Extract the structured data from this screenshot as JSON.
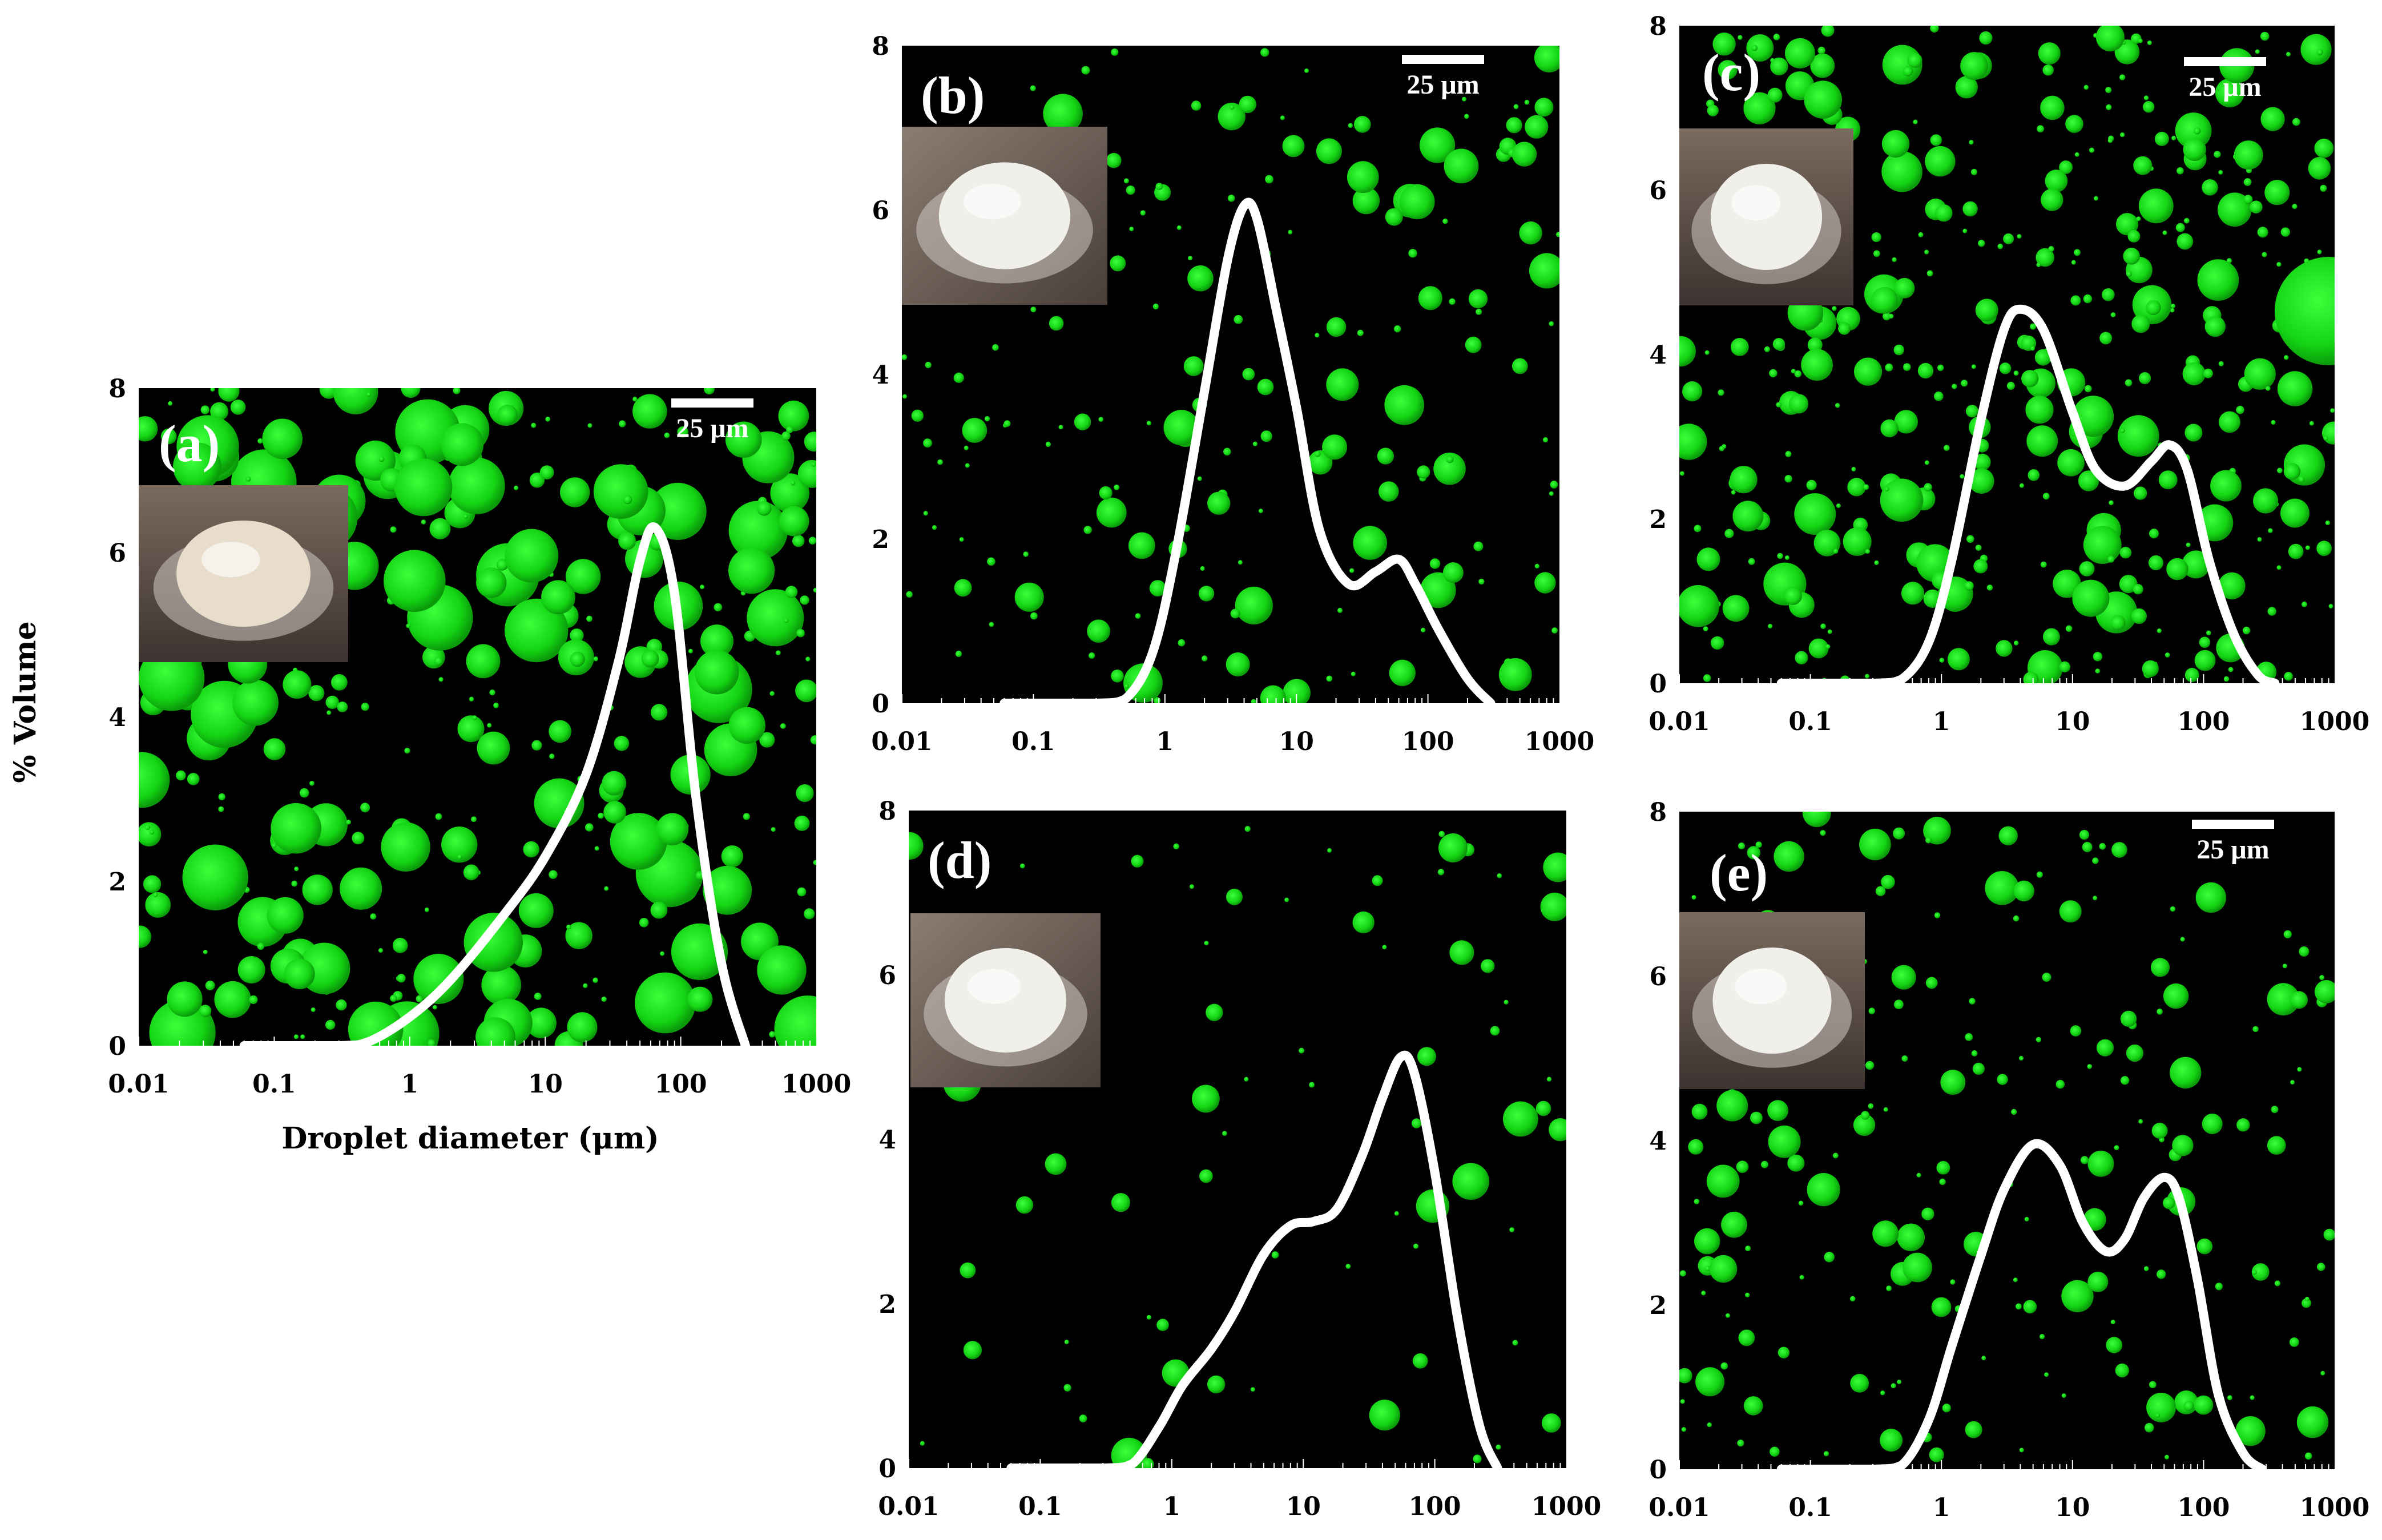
{
  "figure": {
    "ylabel": "% Volume",
    "xlabel": "Droplet diameter (μm)"
  },
  "chart_data": [
    {
      "type": "line",
      "panel": "(a)",
      "scale_bar": "25 μm",
      "x_scale": "log",
      "xlim": [
        0.01,
        1000
      ],
      "ylim": [
        0,
        8
      ],
      "x_ticks": [
        "0.01",
        "0.1",
        "1",
        "10",
        "100",
        "1000"
      ],
      "y_ticks": [
        "0",
        "2",
        "4",
        "6",
        "8"
      ],
      "grid": false,
      "x": [
        0.06,
        0.3,
        0.5,
        1,
        2,
        5,
        10,
        20,
        35,
        50,
        65,
        90,
        130,
        200,
        300
      ],
      "y": [
        0,
        0,
        0.05,
        0.35,
        0.8,
        1.6,
        2.3,
        3.3,
        4.7,
        5.9,
        6.3,
        5.5,
        3.0,
        1.0,
        0
      ]
    },
    {
      "type": "line",
      "panel": "(b)",
      "scale_bar": "25 μm",
      "x_scale": "log",
      "xlim": [
        0.01,
        1000
      ],
      "ylim": [
        0,
        8
      ],
      "x_ticks": [
        "0.01",
        "0.1",
        "1",
        "10",
        "100",
        "1000"
      ],
      "y_ticks": [
        "0",
        "2",
        "4",
        "6",
        "8"
      ],
      "grid": false,
      "x": [
        0.06,
        0.3,
        0.5,
        0.8,
        1.2,
        2,
        3,
        4,
        5,
        7,
        10,
        15,
        25,
        40,
        60,
        80,
        120,
        200,
        300
      ],
      "y": [
        0,
        0,
        0.05,
        0.6,
        1.8,
        3.8,
        5.4,
        6.05,
        5.9,
        4.8,
        3.6,
        2.1,
        1.45,
        1.6,
        1.75,
        1.45,
        0.9,
        0.3,
        0
      ]
    },
    {
      "type": "line",
      "panel": "(c)",
      "scale_bar": "25 μm",
      "x_scale": "log",
      "xlim": [
        0.01,
        1000
      ],
      "ylim": [
        0,
        8
      ],
      "x_ticks": [
        "0.01",
        "0.1",
        "1",
        "10",
        "100",
        "1000"
      ],
      "y_ticks": [
        "0",
        "2",
        "4",
        "6",
        "8"
      ],
      "grid": false,
      "x": [
        0.06,
        0.3,
        0.5,
        0.8,
        1.2,
        2,
        3,
        4,
        6,
        10,
        15,
        25,
        40,
        55,
        75,
        110,
        170,
        260,
        350
      ],
      "y": [
        0,
        0,
        0.05,
        0.5,
        1.5,
        3.2,
        4.3,
        4.55,
        4.3,
        3.3,
        2.6,
        2.4,
        2.7,
        2.9,
        2.6,
        1.5,
        0.6,
        0.1,
        0
      ]
    },
    {
      "type": "line",
      "panel": "(d)",
      "scale_bar": "",
      "x_scale": "log",
      "xlim": [
        0.01,
        1000
      ],
      "ylim": [
        0,
        8
      ],
      "x_ticks": [
        "0.01",
        "0.1",
        "1",
        "10",
        "100",
        "1000"
      ],
      "y_ticks": [
        "0",
        "2",
        "4",
        "6",
        "8"
      ],
      "grid": false,
      "x": [
        0.06,
        0.3,
        0.5,
        0.8,
        1.2,
        2,
        3,
        5,
        8,
        12,
        18,
        28,
        40,
        55,
        70,
        100,
        150,
        220,
        300
      ],
      "y": [
        0,
        0,
        0.05,
        0.5,
        1.0,
        1.45,
        1.9,
        2.6,
        2.95,
        3.0,
        3.15,
        3.8,
        4.5,
        5.0,
        4.8,
        3.6,
        1.8,
        0.5,
        0
      ]
    },
    {
      "type": "line",
      "panel": "(e)",
      "scale_bar": "25 μm",
      "x_scale": "log",
      "xlim": [
        0.01,
        1000
      ],
      "ylim": [
        0,
        8
      ],
      "x_ticks": [
        "0.01",
        "0.1",
        "1",
        "10",
        "100",
        "1000"
      ],
      "y_ticks": [
        "0",
        "2",
        "4",
        "6",
        "8"
      ],
      "grid": false,
      "x": [
        0.06,
        0.3,
        0.5,
        0.8,
        1.2,
        2,
        3,
        5,
        8,
        12,
        18,
        25,
        35,
        50,
        65,
        90,
        130,
        200,
        280
      ],
      "y": [
        0,
        0,
        0.05,
        0.6,
        1.5,
        2.6,
        3.4,
        3.95,
        3.7,
        3.0,
        2.65,
        2.8,
        3.3,
        3.55,
        3.3,
        2.3,
        0.9,
        0.2,
        0
      ]
    }
  ]
}
